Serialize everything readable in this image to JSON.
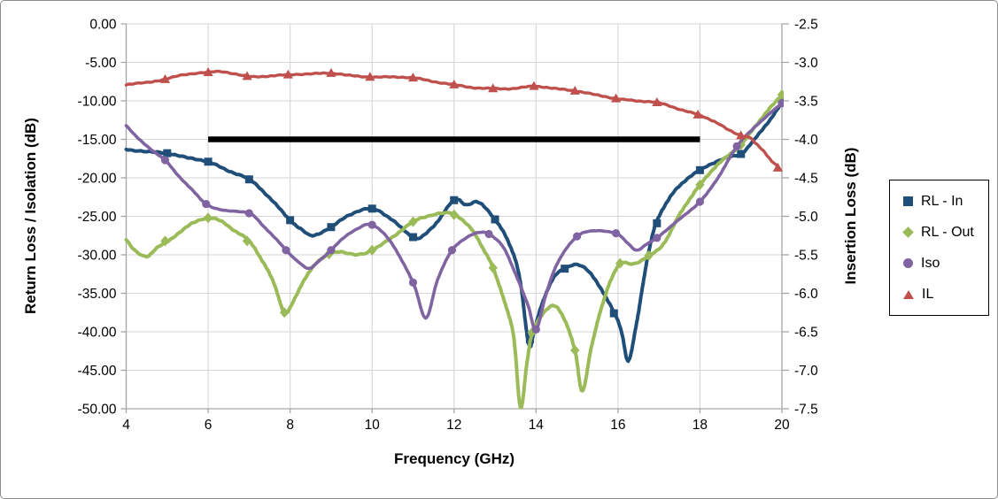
{
  "chart_data": {
    "type": "line",
    "title": "",
    "xlabel": "Frequency (GHz)",
    "ylabel_left": "Return Loss / Isolation (dB)",
    "ylabel_right": "Insertion Loss (dB)",
    "x_range": [
      4,
      20
    ],
    "y_left_range": [
      -50,
      0
    ],
    "y_right_range": [
      -7.5,
      -2.5
    ],
    "x_tick_labels": [
      "4",
      "6",
      "8",
      "10",
      "12",
      "14",
      "16",
      "18",
      "20"
    ],
    "y_left_tick_labels": [
      "0.00",
      "-5.00",
      "-10.00",
      "-15.00",
      "-20.00",
      "-25.00",
      "-30.00",
      "-35.00",
      "-40.00",
      "-45.00",
      "-50.00"
    ],
    "y_right_tick_labels": [
      "-2.5",
      "-3.0",
      "-3.5",
      "-4.0",
      "-4.5",
      "-5.0",
      "-5.5",
      "-6.0",
      "-6.5",
      "-7.0",
      "-7.5"
    ],
    "grid": true,
    "legend_position": "right",
    "colors": {
      "grid": "#d6d6d6",
      "axis": "#a6a6a6",
      "text": "#000000",
      "spec_line": "#000000"
    },
    "spec_line": {
      "y_left": -15,
      "x_start": 6,
      "x_end": 18,
      "color": "#000000",
      "width": 6.5
    },
    "series": [
      {
        "name": "RL - In",
        "color": "#1F4E79",
        "marker": "square",
        "axis": "left",
        "points": [
          [
            4,
            -16.3
          ],
          [
            4.5,
            -16.6
          ],
          [
            5,
            -16.8
          ],
          [
            5.5,
            -17.4
          ],
          [
            6,
            -17.9
          ],
          [
            6.45,
            -19
          ],
          [
            7,
            -20.2
          ],
          [
            7.5,
            -22.6
          ],
          [
            8,
            -25.5
          ],
          [
            8.3,
            -26.8
          ],
          [
            8.55,
            -27.5
          ],
          [
            9,
            -26.4
          ],
          [
            9.45,
            -24.8
          ],
          [
            10,
            -24
          ],
          [
            10.45,
            -25.3
          ],
          [
            10.8,
            -26.9
          ],
          [
            11.1,
            -27.9
          ],
          [
            11.5,
            -26.3
          ],
          [
            12,
            -22.9
          ],
          [
            12.3,
            -23.5
          ],
          [
            12.6,
            -23.2
          ],
          [
            13,
            -25.4
          ],
          [
            13.35,
            -28.6
          ],
          [
            13.6,
            -33
          ],
          [
            13.82,
            -41.6
          ],
          [
            13.95,
            -40
          ],
          [
            14.15,
            -36.3
          ],
          [
            14.45,
            -32.8
          ],
          [
            14.7,
            -31.8
          ],
          [
            15,
            -31.3
          ],
          [
            15.3,
            -32.2
          ],
          [
            15.6,
            -34.6
          ],
          [
            15.92,
            -37.6
          ],
          [
            16.1,
            -40.3
          ],
          [
            16.25,
            -43.8
          ],
          [
            16.45,
            -39
          ],
          [
            16.7,
            -31
          ],
          [
            16.93,
            -25.9
          ],
          [
            17.3,
            -22.3
          ],
          [
            17.65,
            -20.3
          ],
          [
            18,
            -19
          ],
          [
            18.35,
            -18
          ],
          [
            18.7,
            -17.3
          ],
          [
            19,
            -16.9
          ],
          [
            19.3,
            -15.2
          ],
          [
            19.6,
            -13.2
          ],
          [
            19.8,
            -11.8
          ],
          [
            20,
            -10.2
          ]
        ],
        "markers": [
          [
            5,
            -16.8
          ],
          [
            6,
            -17.9
          ],
          [
            7,
            -20.2
          ],
          [
            8,
            -25.5
          ],
          [
            9,
            -26.4
          ],
          [
            10,
            -24
          ],
          [
            11,
            -27.7
          ],
          [
            12,
            -22.9
          ],
          [
            13,
            -25.4
          ],
          [
            13.85,
            -41
          ],
          [
            14.7,
            -31.8
          ],
          [
            15.9,
            -37.6
          ],
          [
            16.95,
            -25.9
          ],
          [
            18,
            -19
          ],
          [
            19,
            -16.9
          ],
          [
            20,
            -10.2
          ]
        ]
      },
      {
        "name": "RL - Out",
        "color": "#9BBB59",
        "marker": "diamond",
        "axis": "left",
        "points": [
          [
            4,
            -28
          ],
          [
            4.2,
            -29.4
          ],
          [
            4.5,
            -30.2
          ],
          [
            4.75,
            -29.1
          ],
          [
            5,
            -28.3
          ],
          [
            5.35,
            -26.9
          ],
          [
            5.65,
            -25.8
          ],
          [
            6,
            -25.2
          ],
          [
            6.3,
            -25.6
          ],
          [
            6.6,
            -26.7
          ],
          [
            7,
            -28.2
          ],
          [
            7.3,
            -30.6
          ],
          [
            7.6,
            -33.6
          ],
          [
            7.86,
            -37.5
          ],
          [
            8.1,
            -35.8
          ],
          [
            8.35,
            -33.2
          ],
          [
            8.6,
            -31.3
          ],
          [
            8.95,
            -29.9
          ],
          [
            9.2,
            -29.6
          ],
          [
            9.6,
            -30
          ],
          [
            10,
            -29.4
          ],
          [
            10.5,
            -27.7
          ],
          [
            11,
            -25.7
          ],
          [
            11.4,
            -24.9
          ],
          [
            11.75,
            -24.6
          ],
          [
            12.03,
            -24.8
          ],
          [
            12.4,
            -26.5
          ],
          [
            12.7,
            -29.1
          ],
          [
            12.95,
            -31.7
          ],
          [
            13.2,
            -35.6
          ],
          [
            13.45,
            -40.5
          ],
          [
            13.62,
            -49.8
          ],
          [
            13.78,
            -44
          ],
          [
            13.91,
            -40.1
          ],
          [
            14.15,
            -37.8
          ],
          [
            14.45,
            -36.6
          ],
          [
            14.7,
            -38.5
          ],
          [
            14.95,
            -42.4
          ],
          [
            15.13,
            -47.7
          ],
          [
            15.35,
            -42
          ],
          [
            15.6,
            -36.8
          ],
          [
            15.85,
            -33
          ],
          [
            16.07,
            -31.1
          ],
          [
            16.4,
            -31.2
          ],
          [
            16.75,
            -30.1
          ],
          [
            17.1,
            -28.7
          ],
          [
            17.5,
            -24.8
          ],
          [
            18,
            -20.9
          ],
          [
            18.45,
            -18.2
          ],
          [
            19,
            -15.7
          ],
          [
            19.35,
            -13.3
          ],
          [
            19.7,
            -11
          ],
          [
            20,
            -9.2
          ]
        ],
        "markers": [
          [
            4.95,
            -28.2
          ],
          [
            6,
            -25.2
          ],
          [
            6.95,
            -28.2
          ],
          [
            7.86,
            -37.5
          ],
          [
            8.95,
            -29.9
          ],
          [
            10,
            -29.4
          ],
          [
            11,
            -25.7
          ],
          [
            12,
            -24.8
          ],
          [
            12.95,
            -31.7
          ],
          [
            13.9,
            -40.1
          ],
          [
            14.95,
            -42.4
          ],
          [
            16.05,
            -31.1
          ],
          [
            16.75,
            -30.1
          ],
          [
            18,
            -20.9
          ],
          [
            19,
            -15.7
          ],
          [
            20,
            -9.2
          ]
        ]
      },
      {
        "name": "Iso",
        "color": "#8064A2",
        "marker": "circle",
        "axis": "left",
        "points": [
          [
            4,
            -13.2
          ],
          [
            4.3,
            -14.9
          ],
          [
            4.6,
            -16.3
          ],
          [
            4.95,
            -17.7
          ],
          [
            5.25,
            -19.6
          ],
          [
            5.6,
            -21.5
          ],
          [
            5.95,
            -23.4
          ],
          [
            6.35,
            -24.2
          ],
          [
            7,
            -24.6
          ],
          [
            7.35,
            -26.3
          ],
          [
            7.65,
            -27.9
          ],
          [
            7.9,
            -29.4
          ],
          [
            8.2,
            -30.9
          ],
          [
            8.46,
            -31.8
          ],
          [
            8.7,
            -30.8
          ],
          [
            9,
            -29.4
          ],
          [
            9.3,
            -27.8
          ],
          [
            9.65,
            -26.6
          ],
          [
            10,
            -26.1
          ],
          [
            10.45,
            -28.3
          ],
          [
            11,
            -33.6
          ],
          [
            11.31,
            -38.2
          ],
          [
            11.6,
            -33.2
          ],
          [
            11.95,
            -29.4
          ],
          [
            12.3,
            -27.8
          ],
          [
            12.6,
            -27.1
          ],
          [
            12.85,
            -27.3
          ],
          [
            13.2,
            -29
          ],
          [
            13.5,
            -32.5
          ],
          [
            13.8,
            -36.5
          ],
          [
            14,
            -39.7
          ],
          [
            14.25,
            -35
          ],
          [
            14.55,
            -30.8
          ],
          [
            15,
            -27.6
          ],
          [
            15.4,
            -26.9
          ],
          [
            15.95,
            -27.2
          ],
          [
            16.2,
            -28.3
          ],
          [
            16.45,
            -29.4
          ],
          [
            16.7,
            -28.6
          ],
          [
            16.95,
            -27.8
          ],
          [
            17.4,
            -25.8
          ],
          [
            18,
            -23.1
          ],
          [
            18.45,
            -19.9
          ],
          [
            18.9,
            -15.9
          ],
          [
            19.3,
            -13.6
          ],
          [
            19.65,
            -11.9
          ],
          [
            20,
            -10.3
          ]
        ],
        "markers": [
          [
            4.95,
            -17.7
          ],
          [
            5.95,
            -23.4
          ],
          [
            7,
            -24.6
          ],
          [
            7.9,
            -29.4
          ],
          [
            9,
            -29.4
          ],
          [
            10,
            -26.1
          ],
          [
            11,
            -33.6
          ],
          [
            11.95,
            -29.4
          ],
          [
            12.85,
            -27.3
          ],
          [
            14,
            -39.7
          ],
          [
            15,
            -27.6
          ],
          [
            15.95,
            -27.2
          ],
          [
            16.95,
            -27.8
          ],
          [
            18,
            -23.1
          ],
          [
            18.9,
            -15.9
          ],
          [
            20,
            -10.3
          ]
        ]
      },
      {
        "name": "IL",
        "color": "#C0504D",
        "marker": "triangle",
        "axis": "right",
        "points": [
          [
            4,
            -3.29
          ],
          [
            4.5,
            -3.26
          ],
          [
            4.95,
            -3.22
          ],
          [
            5.4,
            -3.16
          ],
          [
            6,
            -3.13
          ],
          [
            6.35,
            -3.12
          ],
          [
            6.95,
            -3.18
          ],
          [
            7.45,
            -3.18
          ],
          [
            7.95,
            -3.16
          ],
          [
            8.5,
            -3.15
          ],
          [
            9,
            -3.14
          ],
          [
            9.45,
            -3.17
          ],
          [
            9.95,
            -3.19
          ],
          [
            10.5,
            -3.19
          ],
          [
            11,
            -3.2
          ],
          [
            11.5,
            -3.25
          ],
          [
            12,
            -3.29
          ],
          [
            12.5,
            -3.33
          ],
          [
            12.95,
            -3.34
          ],
          [
            13.45,
            -3.34
          ],
          [
            13.95,
            -3.31
          ],
          [
            14.45,
            -3.34
          ],
          [
            14.95,
            -3.37
          ],
          [
            15.45,
            -3.42
          ],
          [
            15.95,
            -3.47
          ],
          [
            16.45,
            -3.5
          ],
          [
            16.95,
            -3.52
          ],
          [
            17.45,
            -3.6
          ],
          [
            17.95,
            -3.68
          ],
          [
            18.4,
            -3.78
          ],
          [
            18.7,
            -3.88
          ],
          [
            19,
            -3.95
          ],
          [
            19.2,
            -3.97
          ],
          [
            19.35,
            -4.05
          ],
          [
            19.55,
            -4.15
          ],
          [
            19.75,
            -4.28
          ],
          [
            19.93,
            -4.37
          ]
        ],
        "markers": [
          [
            4.95,
            -3.22
          ],
          [
            6,
            -3.13
          ],
          [
            6.95,
            -3.18
          ],
          [
            7.95,
            -3.16
          ],
          [
            9,
            -3.14
          ],
          [
            9.95,
            -3.19
          ],
          [
            11,
            -3.2
          ],
          [
            12,
            -3.29
          ],
          [
            12.95,
            -3.34
          ],
          [
            13.95,
            -3.31
          ],
          [
            14.95,
            -3.37
          ],
          [
            15.95,
            -3.47
          ],
          [
            16.95,
            -3.52
          ],
          [
            17.95,
            -3.68
          ],
          [
            19,
            -3.95
          ],
          [
            19.9,
            -4.37
          ]
        ]
      }
    ]
  }
}
